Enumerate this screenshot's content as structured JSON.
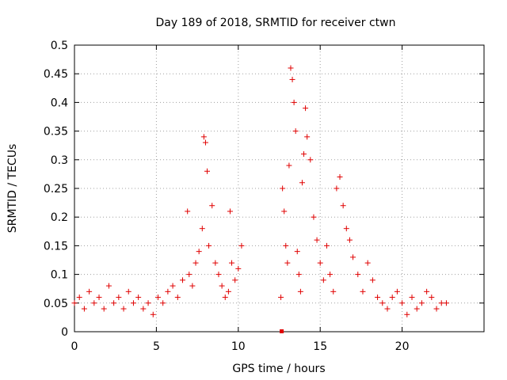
{
  "chart_data": {
    "type": "scatter",
    "title": "Day 189 of 2018, SRMTID for receiver ctwn",
    "xlabel": "GPS time / hours",
    "ylabel": "SRMTID / TECUs",
    "xlim": [
      0,
      25
    ],
    "ylim": [
      0,
      0.5
    ],
    "xticks": [
      0,
      5,
      10,
      15,
      20
    ],
    "xtick_labels": [
      "0",
      "5",
      "10",
      "15",
      "20"
    ],
    "yticks": [
      0,
      0.05,
      0.1,
      0.15,
      0.2,
      0.25,
      0.3,
      0.35,
      0.4,
      0.45,
      0.5
    ],
    "ytick_labels": [
      "0",
      "0.05",
      "0.1",
      "0.15",
      "0.2",
      "0.25",
      "0.3",
      "0.35",
      "0.4",
      "0.45",
      "0.5"
    ],
    "grid": true,
    "marker": "+",
    "marker_color": "#e00000",
    "series": [
      {
        "name": "SRMTID",
        "x": [
          0.0,
          0.3,
          0.6,
          0.9,
          1.2,
          1.5,
          1.8,
          2.1,
          2.4,
          2.7,
          3.0,
          3.3,
          3.6,
          3.9,
          4.2,
          4.5,
          4.8,
          5.1,
          5.4,
          5.7,
          6.0,
          6.3,
          6.6,
          6.9,
          7.0,
          7.2,
          7.4,
          7.6,
          7.8,
          7.9,
          8.0,
          8.1,
          8.2,
          8.4,
          8.6,
          8.8,
          9.0,
          9.2,
          9.4,
          9.5,
          9.6,
          9.8,
          10.0,
          10.2,
          12.6,
          12.7,
          12.8,
          12.9,
          13.0,
          13.1,
          13.2,
          13.3,
          13.4,
          13.5,
          13.6,
          13.7,
          13.8,
          13.9,
          14.0,
          14.1,
          14.2,
          14.4,
          14.6,
          14.8,
          15.0,
          15.2,
          15.4,
          15.6,
          15.8,
          16.0,
          16.2,
          16.4,
          16.6,
          16.8,
          17.0,
          17.3,
          17.6,
          17.9,
          18.2,
          18.5,
          18.8,
          19.1,
          19.4,
          19.7,
          20.0,
          20.3,
          20.6,
          20.9,
          21.2,
          21.5,
          21.8,
          22.1,
          22.4,
          22.7
        ],
        "y": [
          0.05,
          0.06,
          0.04,
          0.07,
          0.05,
          0.06,
          0.04,
          0.08,
          0.05,
          0.06,
          0.04,
          0.07,
          0.05,
          0.06,
          0.04,
          0.05,
          0.03,
          0.06,
          0.05,
          0.07,
          0.08,
          0.06,
          0.09,
          0.21,
          0.1,
          0.08,
          0.12,
          0.14,
          0.18,
          0.34,
          0.33,
          0.28,
          0.15,
          0.22,
          0.12,
          0.1,
          0.08,
          0.06,
          0.07,
          0.21,
          0.12,
          0.09,
          0.11,
          0.15,
          0.06,
          0.25,
          0.21,
          0.15,
          0.12,
          0.29,
          0.46,
          0.44,
          0.4,
          0.35,
          0.14,
          0.1,
          0.07,
          0.26,
          0.31,
          0.39,
          0.34,
          0.3,
          0.2,
          0.16,
          0.12,
          0.09,
          0.15,
          0.1,
          0.07,
          0.25,
          0.27,
          0.22,
          0.18,
          0.16,
          0.13,
          0.1,
          0.07,
          0.12,
          0.09,
          0.06,
          0.05,
          0.04,
          0.06,
          0.07,
          0.05,
          0.03,
          0.06,
          0.04,
          0.05,
          0.07,
          0.06,
          0.04,
          0.05,
          0.05
        ]
      }
    ],
    "outliers": [
      {
        "x": 12.65,
        "y": 0.0
      }
    ]
  }
}
